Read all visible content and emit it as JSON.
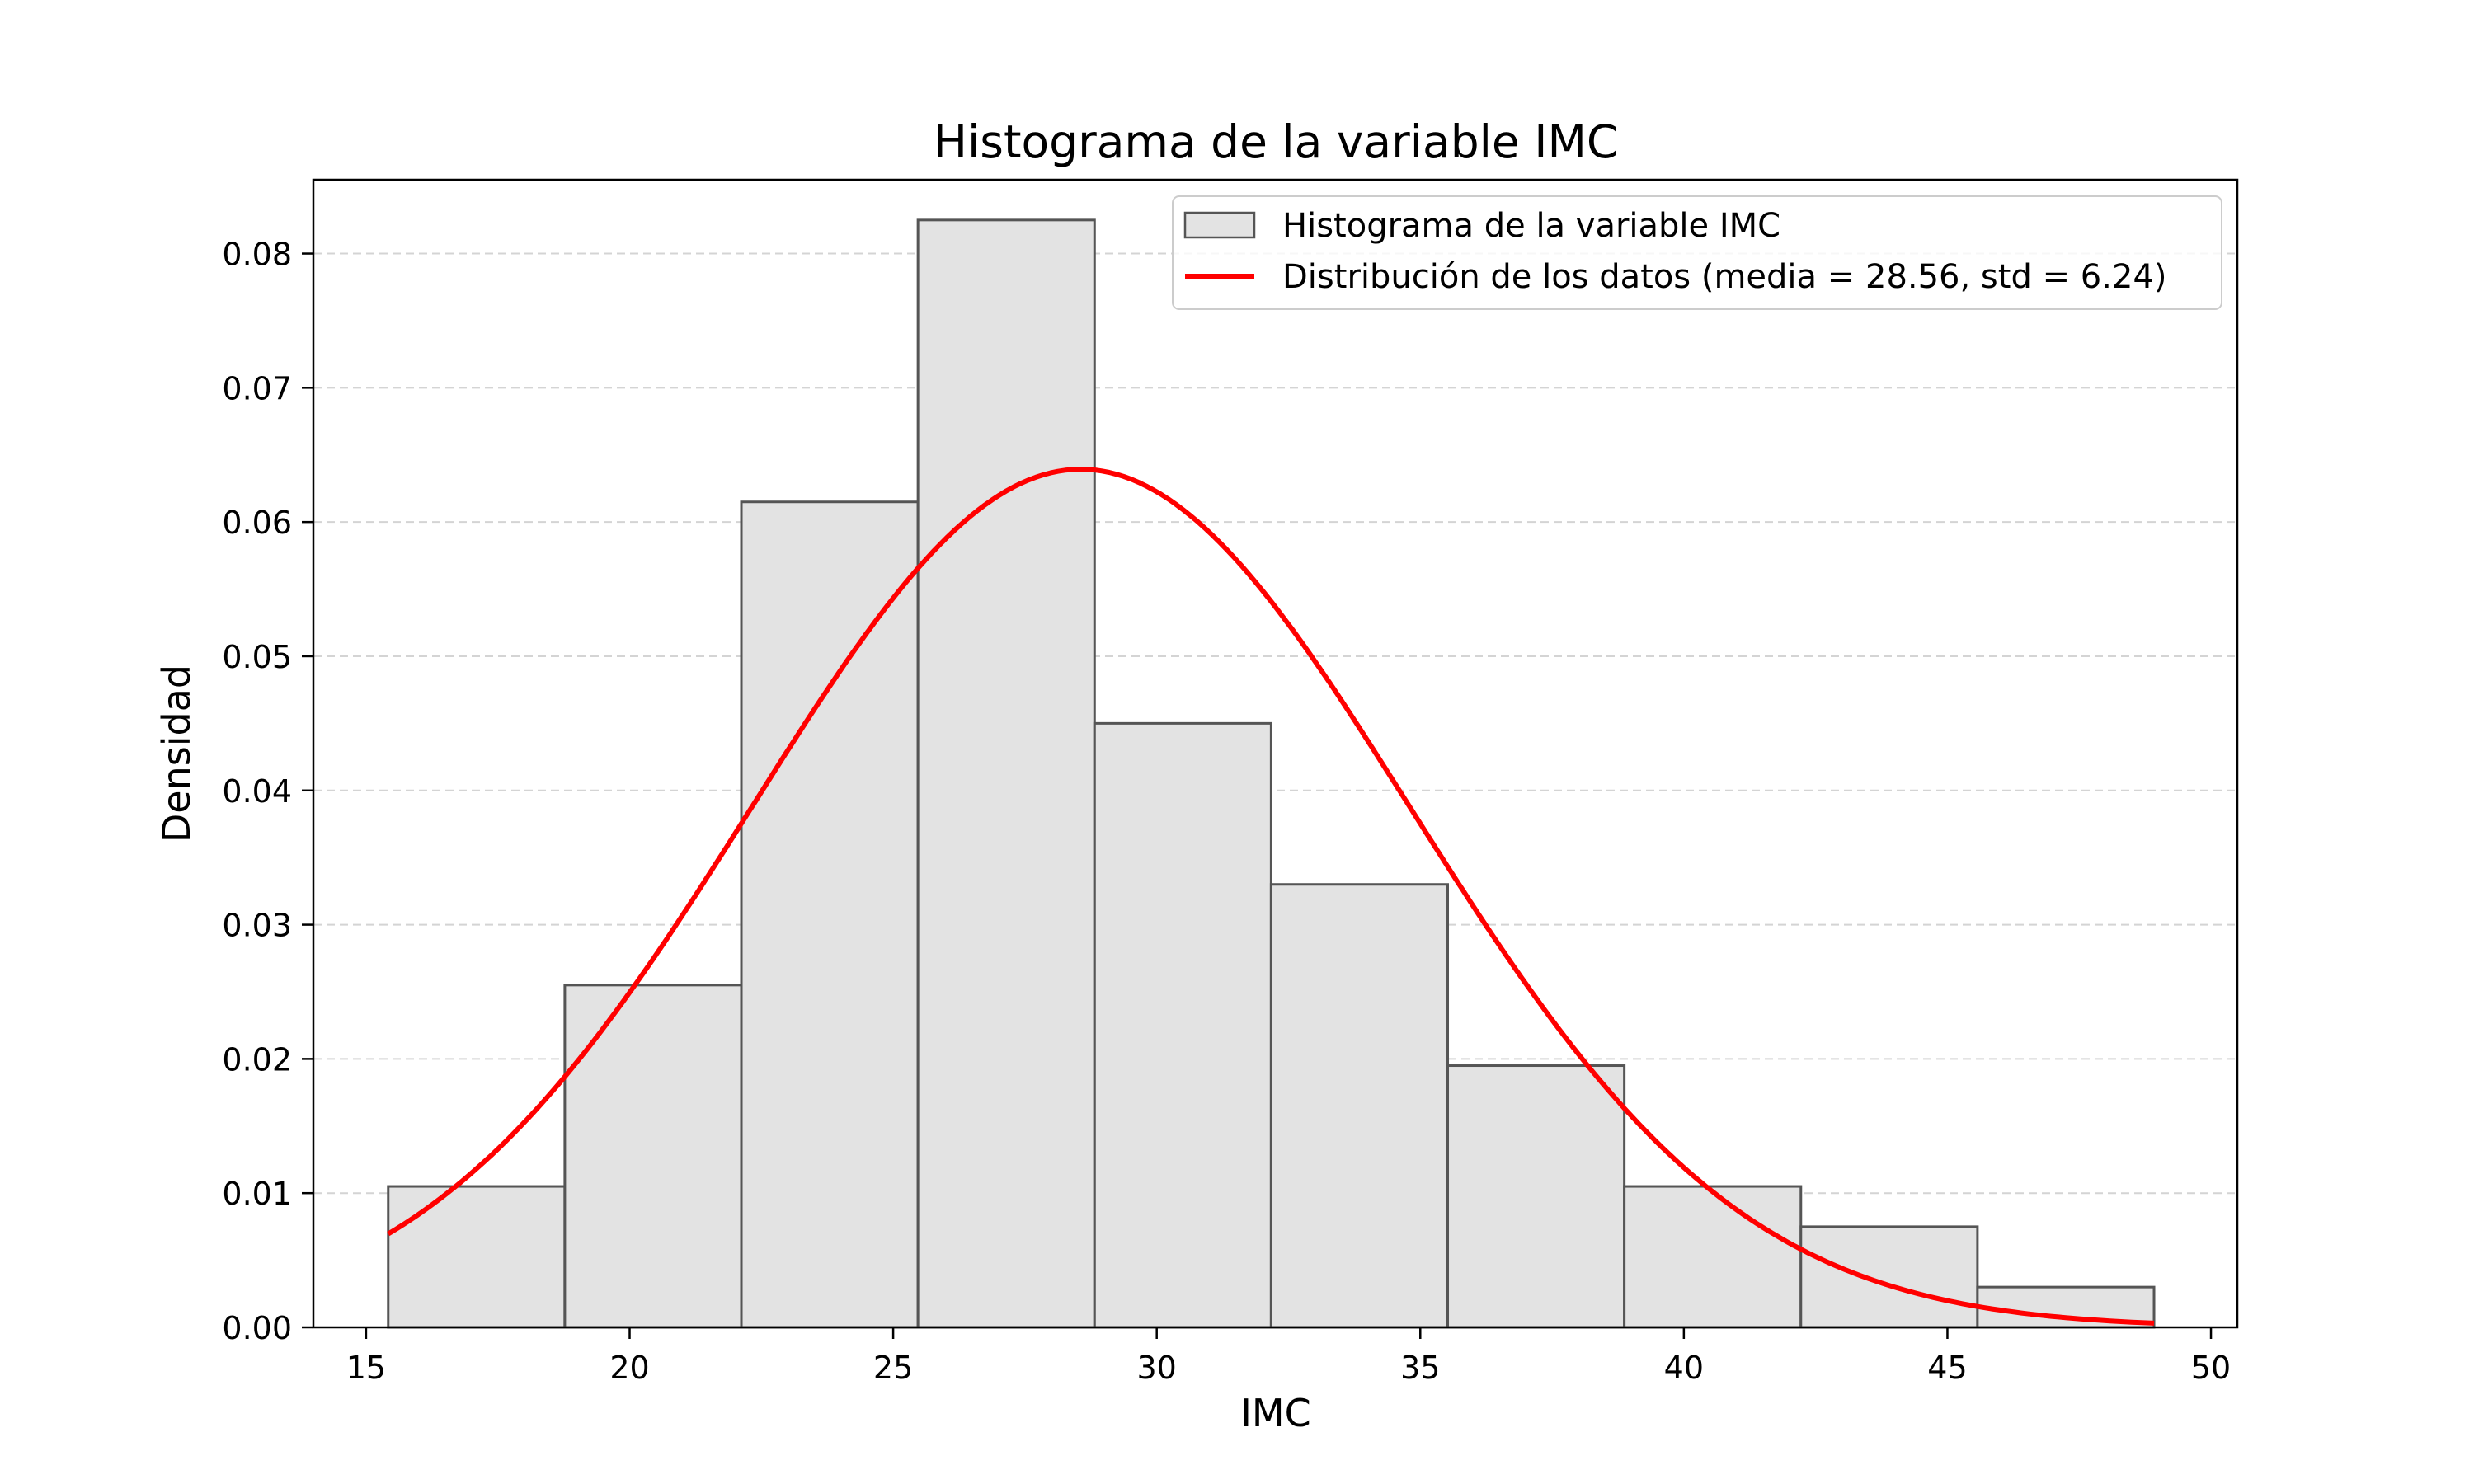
{
  "chart_data": {
    "type": "bar",
    "title": "Histograma de la variable IMC",
    "xlabel": "IMC",
    "ylabel": "Densidad",
    "xlim": [
      14.0,
      50.5
    ],
    "ylim": [
      0,
      0.0855
    ],
    "x_ticks": [
      15,
      20,
      25,
      30,
      35,
      40,
      45,
      50
    ],
    "x_tick_labels": [
      "15",
      "20",
      "25",
      "30",
      "35",
      "40",
      "45",
      "50"
    ],
    "y_ticks": [
      0,
      0.01,
      0.02,
      0.03,
      0.04,
      0.05,
      0.06,
      0.07,
      0.08
    ],
    "y_tick_labels": [
      "0.00",
      "0.01",
      "0.02",
      "0.03",
      "0.04",
      "0.05",
      "0.06",
      "0.07",
      "0.08"
    ],
    "grid": "y-dashed",
    "legend_position": "top-right",
    "series": [
      {
        "name": "Histograma de la variable IMC",
        "kind": "histogram",
        "color": "#e3e3e3",
        "edgecolor": "#555555",
        "bin_edges": [
          15.42,
          18.77,
          22.12,
          25.47,
          28.82,
          32.17,
          35.52,
          38.87,
          42.22,
          45.57,
          48.92
        ],
        "values": [
          0.0105,
          0.0255,
          0.0615,
          0.0825,
          0.045,
          0.033,
          0.0195,
          0.0105,
          0.0075,
          0.003
        ]
      },
      {
        "name": "Distribución de los datos (media = 28.56, std = 6.24)",
        "kind": "normal-pdf-line",
        "color": "#ff0000",
        "mean": 28.56,
        "std": 6.24,
        "x_range": [
          15.42,
          48.92
        ]
      }
    ]
  }
}
